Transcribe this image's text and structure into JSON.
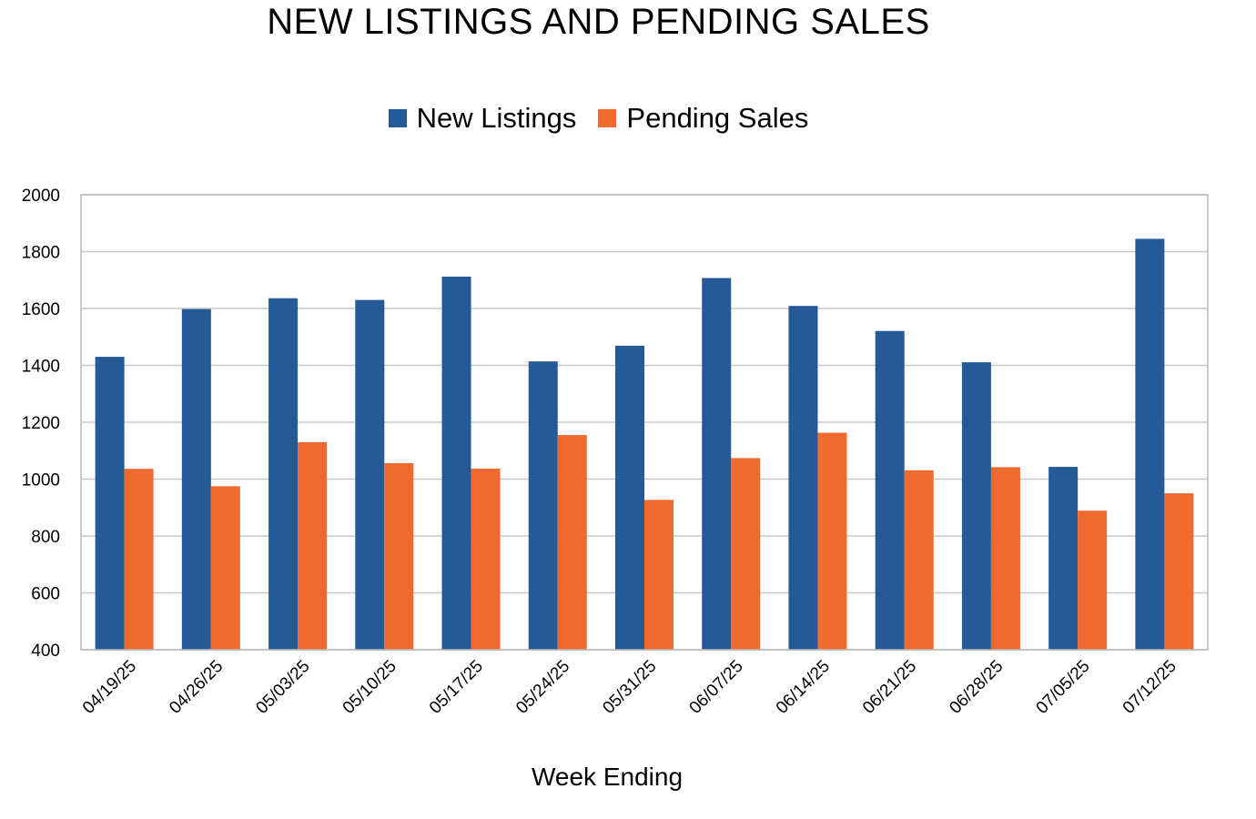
{
  "chart_data": {
    "type": "bar",
    "title": "NEW LISTINGS AND PENDING SALES",
    "xlabel": "Week Ending",
    "ylabel": "",
    "ylim": [
      400,
      2000
    ],
    "yticks": [
      400,
      600,
      800,
      1000,
      1200,
      1400,
      1600,
      1800,
      2000
    ],
    "grid": true,
    "legend_position": "top-center",
    "categories": [
      "04/19/25",
      "04/26/25",
      "05/03/25",
      "05/10/25",
      "05/17/25",
      "05/24/25",
      "05/31/25",
      "06/07/25",
      "06/14/25",
      "06/21/25",
      "06/28/25",
      "07/05/25",
      "07/12/25"
    ],
    "series": [
      {
        "name": "New Listings",
        "color": "#255A96",
        "values": [
          1430,
          1598,
          1636,
          1630,
          1712,
          1414,
          1469,
          1707,
          1609,
          1521,
          1411,
          1043,
          1845
        ]
      },
      {
        "name": "Pending Sales",
        "color": "#EE6A2F",
        "values": [
          1036,
          975,
          1130,
          1056,
          1037,
          1155,
          927,
          1074,
          1163,
          1031,
          1042,
          889,
          950
        ]
      }
    ]
  }
}
